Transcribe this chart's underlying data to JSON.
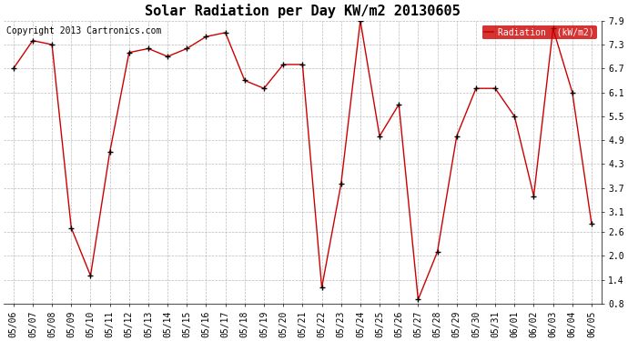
{
  "title": "Solar Radiation per Day KW/m2 20130605",
  "copyright": "Copyright 2013 Cartronics.com",
  "legend_label": "Radiation  (kW/m2)",
  "dates": [
    "05/06",
    "05/07",
    "05/08",
    "05/09",
    "05/10",
    "05/11",
    "05/12",
    "05/13",
    "05/14",
    "05/15",
    "05/16",
    "05/17",
    "05/18",
    "05/19",
    "05/20",
    "05/21",
    "05/22",
    "05/23",
    "05/24",
    "05/25",
    "05/26",
    "05/27",
    "05/28",
    "05/29",
    "05/30",
    "05/31",
    "06/01",
    "06/02",
    "06/03",
    "06/04",
    "06/05"
  ],
  "values": [
    6.7,
    7.4,
    7.3,
    2.7,
    1.5,
    4.6,
    7.1,
    7.2,
    7.0,
    7.2,
    7.5,
    7.6,
    6.4,
    6.2,
    6.8,
    6.8,
    1.2,
    3.8,
    7.9,
    5.0,
    5.8,
    0.9,
    2.1,
    5.0,
    6.2,
    6.2,
    5.5,
    3.5,
    7.7,
    6.1,
    2.8
  ],
  "line_color": "#cc0000",
  "marker_color": "#000000",
  "background_color": "#ffffff",
  "plot_bg_color": "#ffffff",
  "grid_color": "#aaaaaa",
  "ylim_min": 0.8,
  "ylim_max": 7.9,
  "yticks": [
    0.8,
    1.4,
    2.0,
    2.6,
    3.1,
    3.7,
    4.3,
    4.9,
    5.5,
    6.1,
    6.7,
    7.3,
    7.9
  ],
  "legend_bg": "#cc0000",
  "legend_text_color": "#ffffff",
  "title_fontsize": 11,
  "tick_fontsize": 7,
  "copyright_fontsize": 7
}
